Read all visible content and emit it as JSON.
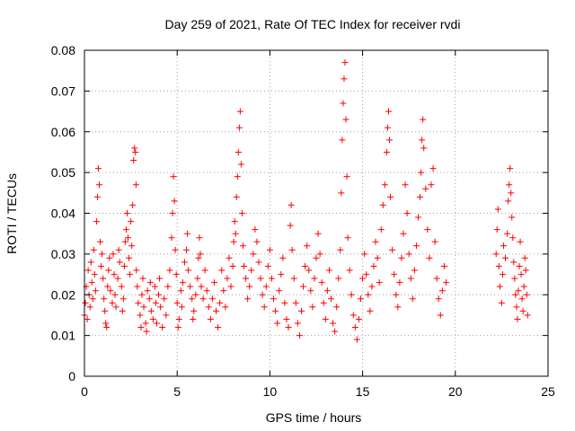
{
  "chart_data": {
    "type": "scatter",
    "title": "Day 259 of 2021, Rate Of TEC Index for receiver rvdi",
    "xlabel": "GPS time / hours",
    "ylabel": "ROTI / TECUs",
    "xlim": [
      0,
      25
    ],
    "ylim": [
      0,
      0.08
    ],
    "xticks": [
      0,
      5,
      10,
      15,
      20,
      25
    ],
    "yticks": [
      0,
      0.01,
      0.02,
      0.03,
      0.04,
      0.05,
      0.06,
      0.07,
      0.08
    ],
    "xtick_labels": [
      "0",
      "5",
      "10",
      "15",
      "20",
      "25"
    ],
    "ytick_labels": [
      "0",
      "0.01",
      "0.02",
      "0.03",
      "0.04",
      "0.05",
      "0.06",
      "0.07",
      "0.08"
    ],
    "grid": true,
    "marker": "plus",
    "color": "#ff0000",
    "series": [
      {
        "points": [
          [
            0.0,
            0.015
          ],
          [
            0.05,
            0.018
          ],
          [
            0.1,
            0.022
          ],
          [
            0.15,
            0.014
          ],
          [
            0.2,
            0.026
          ],
          [
            0.25,
            0.02
          ],
          [
            0.3,
            0.017
          ],
          [
            0.35,
            0.028
          ],
          [
            0.4,
            0.023
          ],
          [
            0.45,
            0.019
          ],
          [
            0.5,
            0.031
          ],
          [
            0.55,
            0.025
          ],
          [
            0.6,
            0.021
          ],
          [
            0.65,
            0.038
          ],
          [
            0.7,
            0.044
          ],
          [
            0.75,
            0.051
          ],
          [
            0.8,
            0.047
          ],
          [
            0.85,
            0.033
          ],
          [
            0.9,
            0.027
          ],
          [
            0.95,
            0.03
          ],
          [
            1.0,
            0.024
          ],
          [
            1.05,
            0.019
          ],
          [
            1.1,
            0.016
          ],
          [
            1.15,
            0.013
          ],
          [
            1.2,
            0.012
          ],
          [
            1.25,
            0.022
          ],
          [
            1.3,
            0.026
          ],
          [
            1.35,
            0.029
          ],
          [
            1.4,
            0.021
          ],
          [
            1.5,
            0.018
          ],
          [
            1.55,
            0.03
          ],
          [
            1.6,
            0.025
          ],
          [
            1.65,
            0.02
          ],
          [
            1.7,
            0.017
          ],
          [
            1.8,
            0.024
          ],
          [
            1.85,
            0.031
          ],
          [
            1.9,
            0.028
          ],
          [
            2.0,
            0.022
          ],
          [
            2.05,
            0.016
          ],
          [
            2.1,
            0.019
          ],
          [
            2.15,
            0.027
          ],
          [
            2.2,
            0.033
          ],
          [
            2.25,
            0.036
          ],
          [
            2.3,
            0.04
          ],
          [
            2.35,
            0.034
          ],
          [
            2.4,
            0.029
          ],
          [
            2.45,
            0.025
          ],
          [
            2.5,
            0.038
          ],
          [
            2.55,
            0.032
          ],
          [
            2.6,
            0.042
          ],
          [
            2.65,
            0.053
          ],
          [
            2.7,
            0.056
          ],
          [
            2.75,
            0.055
          ],
          [
            2.78,
            0.047
          ],
          [
            2.8,
            0.026
          ],
          [
            2.85,
            0.022
          ],
          [
            2.9,
            0.018
          ],
          [
            3.0,
            0.015
          ],
          [
            3.05,
            0.012
          ],
          [
            3.1,
            0.02
          ],
          [
            3.15,
            0.024
          ],
          [
            3.2,
            0.017
          ],
          [
            3.3,
            0.013
          ],
          [
            3.35,
            0.011
          ],
          [
            3.4,
            0.021
          ],
          [
            3.5,
            0.019
          ],
          [
            3.55,
            0.023
          ],
          [
            3.6,
            0.016
          ],
          [
            3.7,
            0.014
          ],
          [
            3.8,
            0.022
          ],
          [
            3.85,
            0.018
          ],
          [
            3.9,
            0.013
          ],
          [
            4.0,
            0.02
          ],
          [
            4.05,
            0.024
          ],
          [
            4.1,
            0.017
          ],
          [
            4.2,
            0.012
          ],
          [
            4.3,
            0.019
          ],
          [
            4.4,
            0.015
          ],
          [
            4.5,
            0.022
          ],
          [
            4.6,
            0.026
          ],
          [
            4.7,
            0.034
          ],
          [
            4.75,
            0.04
          ],
          [
            4.8,
            0.049
          ],
          [
            4.85,
            0.043
          ],
          [
            4.9,
            0.031
          ],
          [
            4.95,
            0.025
          ],
          [
            5.0,
            0.018
          ],
          [
            5.05,
            0.012
          ],
          [
            5.1,
            0.014
          ],
          [
            5.2,
            0.021
          ],
          [
            5.25,
            0.017
          ],
          [
            5.3,
            0.023
          ],
          [
            5.4,
            0.028
          ],
          [
            5.5,
            0.031
          ],
          [
            5.55,
            0.035
          ],
          [
            5.6,
            0.026
          ],
          [
            5.7,
            0.022
          ],
          [
            5.8,
            0.019
          ],
          [
            5.85,
            0.014
          ],
          [
            5.9,
            0.016
          ],
          [
            6.0,
            0.02
          ],
          [
            6.1,
            0.024
          ],
          [
            6.15,
            0.029
          ],
          [
            6.2,
            0.034
          ],
          [
            6.25,
            0.03
          ],
          [
            6.3,
            0.022
          ],
          [
            6.4,
            0.019
          ],
          [
            6.5,
            0.026
          ],
          [
            6.6,
            0.021
          ],
          [
            6.7,
            0.017
          ],
          [
            6.8,
            0.014
          ],
          [
            6.9,
            0.019
          ],
          [
            7.0,
            0.023
          ],
          [
            7.1,
            0.016
          ],
          [
            7.2,
            0.012
          ],
          [
            7.3,
            0.018
          ],
          [
            7.4,
            0.026
          ],
          [
            7.5,
            0.021
          ],
          [
            7.6,
            0.017
          ],
          [
            7.7,
            0.024
          ],
          [
            7.8,
            0.029
          ],
          [
            7.9,
            0.022
          ],
          [
            8.0,
            0.027
          ],
          [
            8.05,
            0.033
          ],
          [
            8.1,
            0.038
          ],
          [
            8.15,
            0.035
          ],
          [
            8.2,
            0.044
          ],
          [
            8.25,
            0.049
          ],
          [
            8.3,
            0.055
          ],
          [
            8.35,
            0.061
          ],
          [
            8.4,
            0.065
          ],
          [
            8.45,
            0.052
          ],
          [
            8.5,
            0.04
          ],
          [
            8.55,
            0.032
          ],
          [
            8.6,
            0.027
          ],
          [
            8.7,
            0.024
          ],
          [
            8.8,
            0.019
          ],
          [
            8.9,
            0.022
          ],
          [
            9.0,
            0.026
          ],
          [
            9.1,
            0.03
          ],
          [
            9.2,
            0.036
          ],
          [
            9.3,
            0.033
          ],
          [
            9.4,
            0.028
          ],
          [
            9.5,
            0.024
          ],
          [
            9.6,
            0.02
          ],
          [
            9.7,
            0.017
          ],
          [
            9.8,
            0.022
          ],
          [
            9.9,
            0.027
          ],
          [
            10.0,
            0.031
          ],
          [
            10.1,
            0.024
          ],
          [
            10.2,
            0.019
          ],
          [
            10.3,
            0.016
          ],
          [
            10.4,
            0.013
          ],
          [
            10.5,
            0.021
          ],
          [
            10.6,
            0.025
          ],
          [
            10.7,
            0.029
          ],
          [
            10.8,
            0.018
          ],
          [
            10.9,
            0.014
          ],
          [
            11.0,
            0.012
          ],
          [
            11.1,
            0.037
          ],
          [
            11.15,
            0.042
          ],
          [
            11.2,
            0.031
          ],
          [
            11.3,
            0.024
          ],
          [
            11.4,
            0.018
          ],
          [
            11.5,
            0.013
          ],
          [
            11.6,
            0.01
          ],
          [
            11.7,
            0.016
          ],
          [
            11.8,
            0.022
          ],
          [
            11.9,
            0.027
          ],
          [
            12.0,
            0.032
          ],
          [
            12.1,
            0.026
          ],
          [
            12.2,
            0.021
          ],
          [
            12.3,
            0.017
          ],
          [
            12.4,
            0.024
          ],
          [
            12.5,
            0.029
          ],
          [
            12.6,
            0.035
          ],
          [
            12.7,
            0.03
          ],
          [
            12.8,
            0.023
          ],
          [
            12.9,
            0.018
          ],
          [
            13.0,
            0.014
          ],
          [
            13.1,
            0.021
          ],
          [
            13.2,
            0.026
          ],
          [
            13.3,
            0.019
          ],
          [
            13.4,
            0.013
          ],
          [
            13.5,
            0.011
          ],
          [
            13.6,
            0.017
          ],
          [
            13.7,
            0.024
          ],
          [
            13.8,
            0.031
          ],
          [
            13.85,
            0.045
          ],
          [
            13.9,
            0.058
          ],
          [
            13.95,
            0.067
          ],
          [
            14.0,
            0.073
          ],
          [
            14.05,
            0.077
          ],
          [
            14.1,
            0.063
          ],
          [
            14.15,
            0.049
          ],
          [
            14.2,
            0.034
          ],
          [
            14.3,
            0.026
          ],
          [
            14.4,
            0.02
          ],
          [
            14.5,
            0.015
          ],
          [
            14.6,
            0.012
          ],
          [
            14.7,
            0.009
          ],
          [
            14.8,
            0.014
          ],
          [
            14.9,
            0.019
          ],
          [
            15.0,
            0.024
          ],
          [
            15.1,
            0.03
          ],
          [
            15.2,
            0.025
          ],
          [
            15.3,
            0.02
          ],
          [
            15.4,
            0.016
          ],
          [
            15.5,
            0.022
          ],
          [
            15.6,
            0.027
          ],
          [
            15.7,
            0.033
          ],
          [
            15.8,
            0.029
          ],
          [
            15.9,
            0.023
          ],
          [
            16.0,
            0.036
          ],
          [
            16.1,
            0.042
          ],
          [
            16.2,
            0.047
          ],
          [
            16.3,
            0.055
          ],
          [
            16.35,
            0.061
          ],
          [
            16.4,
            0.065
          ],
          [
            16.45,
            0.058
          ],
          [
            16.5,
            0.044
          ],
          [
            16.6,
            0.031
          ],
          [
            16.7,
            0.025
          ],
          [
            16.8,
            0.02
          ],
          [
            16.9,
            0.017
          ],
          [
            17.0,
            0.023
          ],
          [
            17.1,
            0.029
          ],
          [
            17.2,
            0.035
          ],
          [
            17.3,
            0.047
          ],
          [
            17.4,
            0.04
          ],
          [
            17.5,
            0.03
          ],
          [
            17.6,
            0.024
          ],
          [
            17.7,
            0.019
          ],
          [
            17.8,
            0.026
          ],
          [
            17.9,
            0.032
          ],
          [
            18.0,
            0.039
          ],
          [
            18.1,
            0.044
          ],
          [
            18.15,
            0.05
          ],
          [
            18.2,
            0.058
          ],
          [
            18.25,
            0.063
          ],
          [
            18.3,
            0.056
          ],
          [
            18.4,
            0.046
          ],
          [
            18.5,
            0.036
          ],
          [
            18.6,
            0.029
          ],
          [
            18.7,
            0.047
          ],
          [
            18.8,
            0.051
          ],
          [
            18.9,
            0.033
          ],
          [
            19.0,
            0.024
          ],
          [
            19.1,
            0.019
          ],
          [
            19.2,
            0.015
          ],
          [
            19.3,
            0.021
          ],
          [
            19.4,
            0.027
          ],
          [
            19.5,
            0.023
          ],
          [
            22.2,
            0.03
          ],
          [
            22.25,
            0.036
          ],
          [
            22.3,
            0.041
          ],
          [
            22.35,
            0.027
          ],
          [
            22.4,
            0.022
          ],
          [
            22.5,
            0.018
          ],
          [
            22.55,
            0.025
          ],
          [
            22.6,
            0.032
          ],
          [
            22.7,
            0.029
          ],
          [
            22.8,
            0.035
          ],
          [
            22.85,
            0.043
          ],
          [
            22.9,
            0.047
          ],
          [
            22.95,
            0.051
          ],
          [
            23.0,
            0.045
          ],
          [
            23.05,
            0.039
          ],
          [
            23.1,
            0.034
          ],
          [
            23.15,
            0.028
          ],
          [
            23.2,
            0.024
          ],
          [
            23.25,
            0.02
          ],
          [
            23.3,
            0.017
          ],
          [
            23.35,
            0.014
          ],
          [
            23.4,
            0.021
          ],
          [
            23.45,
            0.027
          ],
          [
            23.5,
            0.033
          ],
          [
            23.55,
            0.025
          ],
          [
            23.6,
            0.019
          ],
          [
            23.65,
            0.016
          ],
          [
            23.7,
            0.022
          ],
          [
            23.75,
            0.029
          ],
          [
            23.8,
            0.026
          ],
          [
            23.85,
            0.02
          ],
          [
            23.9,
            0.015
          ]
        ]
      }
    ]
  }
}
